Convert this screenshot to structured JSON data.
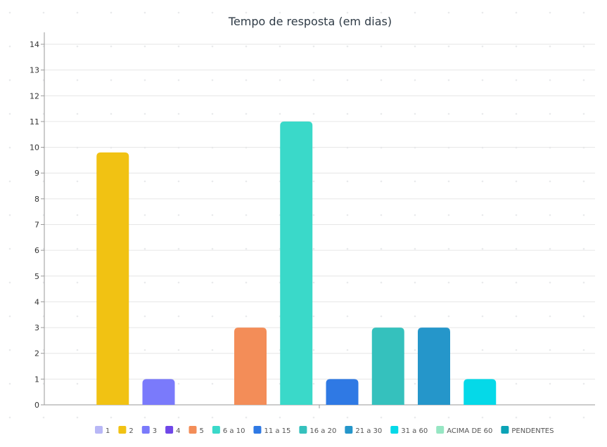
{
  "chart_data": {
    "type": "bar",
    "title": "Tempo de resposta (em dias)",
    "xlabel": "",
    "ylabel": "",
    "ylim": [
      0,
      14.5
    ],
    "yticks": [
      0,
      1,
      2,
      3,
      4,
      5,
      6,
      7,
      8,
      9,
      10,
      11,
      12,
      13,
      14
    ],
    "grid": true,
    "legend_position": "bottom",
    "series": [
      {
        "name": "1",
        "value": 0,
        "color": "#b8b7f6"
      },
      {
        "name": "2",
        "value": 9.8,
        "color": "#f1c213"
      },
      {
        "name": "3",
        "value": 1,
        "color": "#7a7afb"
      },
      {
        "name": "4",
        "value": 0,
        "color": "#6f47e8"
      },
      {
        "name": "5",
        "value": 3,
        "color": "#f38d58"
      },
      {
        "name": "6 a 10",
        "value": 11,
        "color": "#3ad9c9"
      },
      {
        "name": "11 a 15",
        "value": 1,
        "color": "#2f79e4"
      },
      {
        "name": "16 a 20",
        "value": 3,
        "color": "#35c1bd"
      },
      {
        "name": "21 a 30",
        "value": 3,
        "color": "#2596ca"
      },
      {
        "name": "31 a 60",
        "value": 1,
        "color": "#05d9e8"
      },
      {
        "name": "ACIMA DE 60",
        "value": 0,
        "color": "#96e6c3"
      },
      {
        "name": "PENDENTES",
        "value": 0,
        "color": "#0aa3b6"
      }
    ]
  }
}
